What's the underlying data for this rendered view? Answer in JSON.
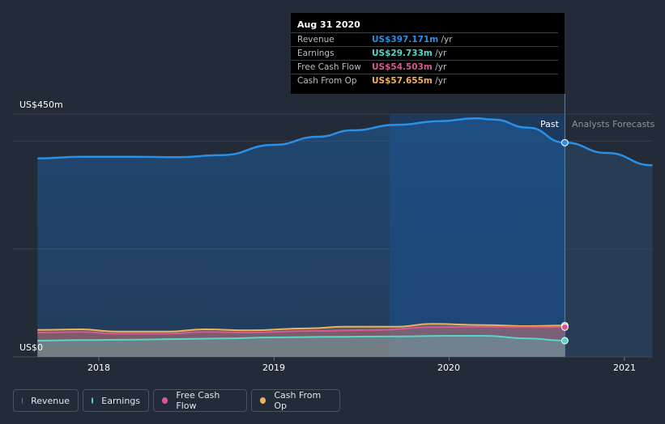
{
  "chart_data": {
    "type": "area",
    "y_axis": {
      "top_label": "US$450m",
      "bottom_label": "US$0",
      "ylim": [
        0,
        450
      ]
    },
    "x_ticks": [
      {
        "label": "2018",
        "x": 2018.0
      },
      {
        "label": "2019",
        "x": 2019.0
      },
      {
        "label": "2020",
        "x": 2020.0
      },
      {
        "label": "2021",
        "x": 2021.0
      }
    ],
    "xlim": [
      2017.65,
      2021.16
    ],
    "past_end": 2020.66,
    "highlight_start": 2019.66,
    "regions": {
      "past": "Past",
      "forecast": "Analysts Forecasts"
    },
    "series": [
      {
        "name": "Revenue",
        "color": "#2b8fe6",
        "points": [
          [
            2017.65,
            368
          ],
          [
            2017.9,
            371
          ],
          [
            2018.2,
            371
          ],
          [
            2018.45,
            370
          ],
          [
            2018.7,
            374
          ],
          [
            2019.0,
            393
          ],
          [
            2019.25,
            408
          ],
          [
            2019.45,
            420
          ],
          [
            2019.7,
            430
          ],
          [
            2019.95,
            437
          ],
          [
            2020.15,
            442
          ],
          [
            2020.25,
            440
          ],
          [
            2020.45,
            425
          ],
          [
            2020.66,
            397
          ]
        ],
        "forecast": [
          [
            2020.66,
            397
          ],
          [
            2020.9,
            378
          ],
          [
            2021.16,
            355
          ]
        ]
      },
      {
        "name": "Earnings",
        "color": "#58d6c9",
        "points": [
          [
            2017.65,
            30
          ],
          [
            2017.9,
            31
          ],
          [
            2018.2,
            32
          ],
          [
            2018.45,
            33
          ],
          [
            2018.7,
            34
          ],
          [
            2019.0,
            36
          ],
          [
            2019.3,
            37
          ],
          [
            2019.7,
            38
          ],
          [
            2020.0,
            39
          ],
          [
            2020.2,
            39
          ],
          [
            2020.45,
            34
          ],
          [
            2020.66,
            30
          ]
        ]
      },
      {
        "name": "Free Cash Flow",
        "color": "#d55a92",
        "points": [
          [
            2017.65,
            45
          ],
          [
            2017.9,
            46
          ],
          [
            2018.1,
            43
          ],
          [
            2018.4,
            43
          ],
          [
            2018.6,
            46
          ],
          [
            2018.85,
            45
          ],
          [
            2019.2,
            48
          ],
          [
            2019.6,
            50
          ],
          [
            2019.9,
            55
          ],
          [
            2020.2,
            56
          ],
          [
            2020.45,
            55
          ],
          [
            2020.66,
            55
          ]
        ]
      },
      {
        "name": "Cash From Op",
        "color": "#f0b15a",
        "points": [
          [
            2017.65,
            50
          ],
          [
            2017.9,
            51
          ],
          [
            2018.1,
            47
          ],
          [
            2018.4,
            47
          ],
          [
            2018.6,
            51
          ],
          [
            2018.85,
            49
          ],
          [
            2019.2,
            53
          ],
          [
            2019.4,
            56
          ],
          [
            2019.7,
            56
          ],
          [
            2019.9,
            61
          ],
          [
            2020.2,
            59
          ],
          [
            2020.45,
            57
          ],
          [
            2020.66,
            58
          ]
        ]
      }
    ]
  },
  "tooltip": {
    "date": "Aug 31 2020",
    "rows": [
      {
        "label": "Revenue",
        "value": "US$397.171m",
        "unit": " /yr",
        "color": "#2b8fe6"
      },
      {
        "label": "Earnings",
        "value": "US$29.733m",
        "unit": " /yr",
        "color": "#58d6c9"
      },
      {
        "label": "Free Cash Flow",
        "value": "US$54.503m",
        "unit": " /yr",
        "color": "#d55a92"
      },
      {
        "label": "Cash From Op",
        "value": "US$57.655m",
        "unit": " /yr",
        "color": "#f0b15a"
      }
    ]
  },
  "legend": [
    {
      "label": "Revenue",
      "color": "#2b8fe6"
    },
    {
      "label": "Earnings",
      "color": "#58d6c9"
    },
    {
      "label": "Free Cash Flow",
      "color": "#d55a92"
    },
    {
      "label": "Cash From Op",
      "color": "#f0b15a"
    }
  ]
}
